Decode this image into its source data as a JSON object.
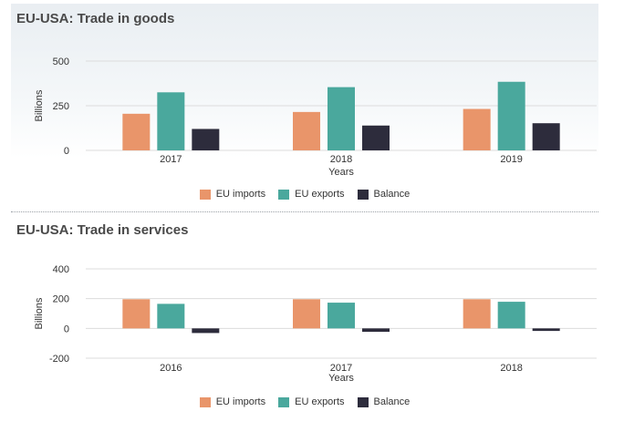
{
  "chart_data": [
    {
      "type": "bar",
      "title": "EU-USA: Trade in goods",
      "xlabel": "Years",
      "ylabel": "Billions",
      "categories": [
        "2017",
        "2018",
        "2019"
      ],
      "ylim": [
        0,
        500
      ],
      "yticks": [
        0,
        250,
        500
      ],
      "grid": true,
      "legend_position": "bottom",
      "series": [
        {
          "name": "EU imports",
          "color": "#e9956a",
          "values": [
            205,
            215,
            232
          ]
        },
        {
          "name": "EU exports",
          "color": "#4aa89d",
          "values": [
            325,
            354,
            384
          ]
        },
        {
          "name": "Balance",
          "color": "#2d2c3c",
          "values": [
            120,
            139,
            152
          ]
        }
      ]
    },
    {
      "type": "bar",
      "title": "EU-USA: Trade in services",
      "xlabel": "Years",
      "ylabel": "Billions",
      "categories": [
        "2016",
        "2017",
        "2018"
      ],
      "ylim": [
        -200,
        400
      ],
      "yticks": [
        -200,
        0,
        200,
        400
      ],
      "grid": true,
      "legend_position": "bottom",
      "series": [
        {
          "name": "EU imports",
          "color": "#e9956a",
          "values": [
            196,
            196,
            196
          ]
        },
        {
          "name": "EU exports",
          "color": "#4aa89d",
          "values": [
            165,
            173,
            179
          ]
        },
        {
          "name": "Balance",
          "color": "#2d2c3c",
          "values": [
            -31,
            -23,
            -17
          ]
        }
      ]
    }
  ]
}
